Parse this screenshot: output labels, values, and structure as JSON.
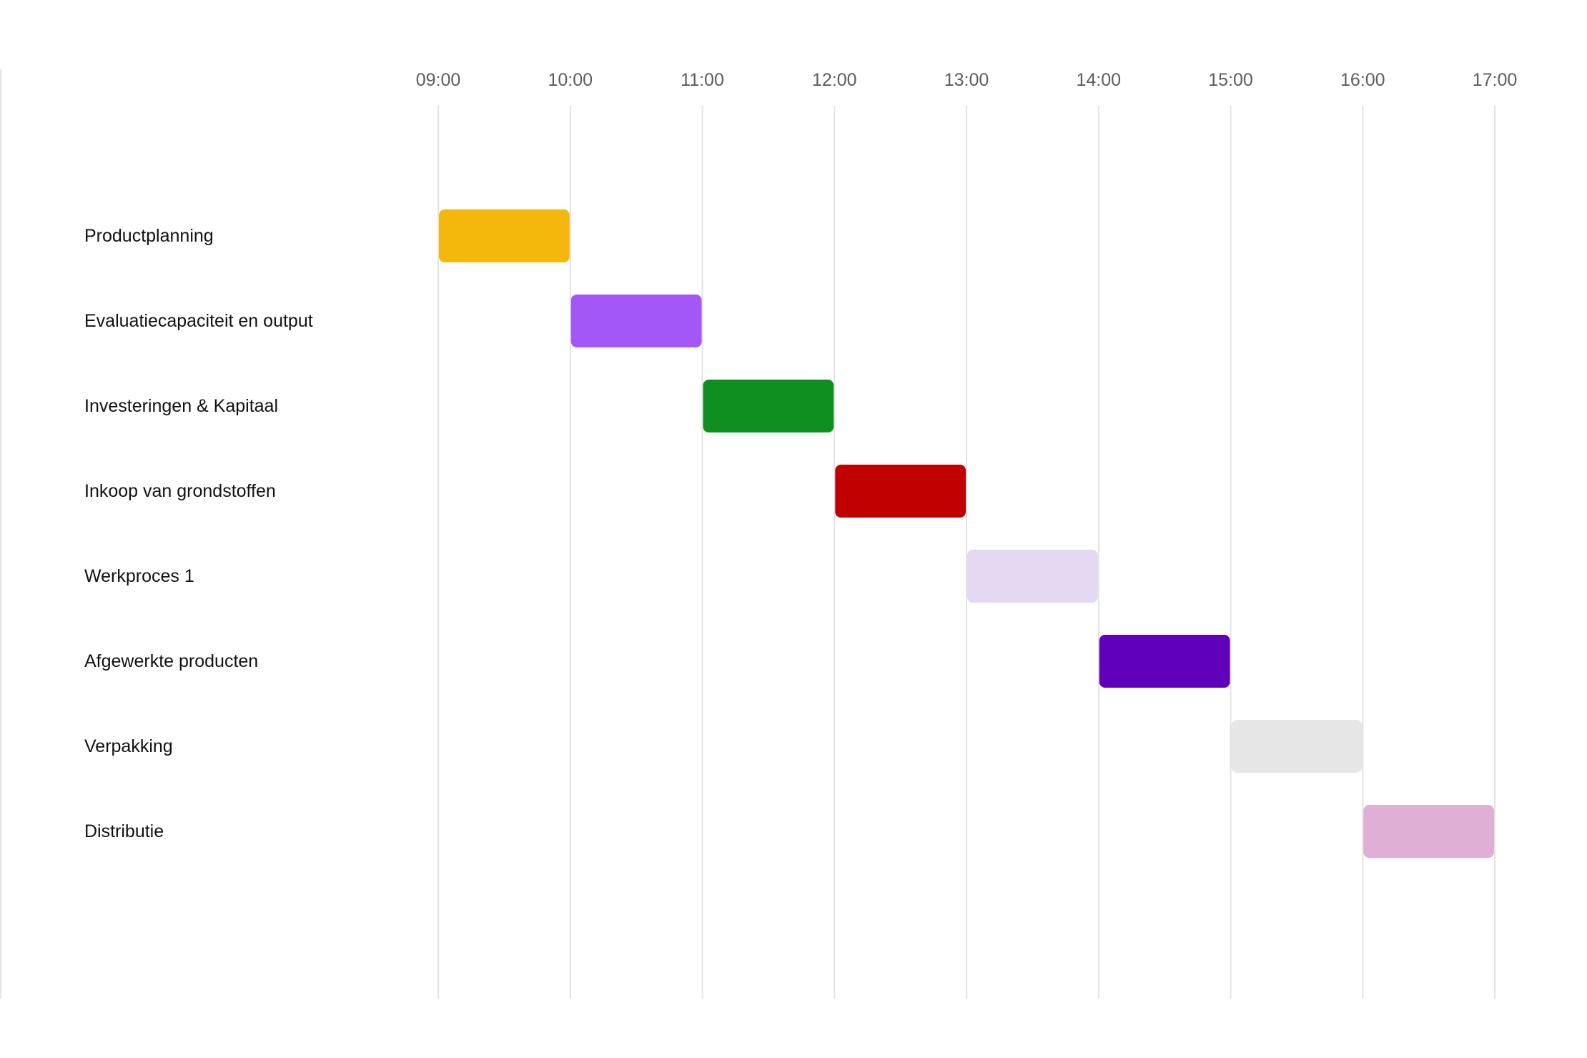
{
  "chart_data": {
    "type": "gantt",
    "x_ticks": [
      "09:00",
      "10:00",
      "11:00",
      "12:00",
      "13:00",
      "14:00",
      "15:00",
      "16:00",
      "17:00"
    ],
    "xlim": [
      "09:00",
      "17:00"
    ],
    "grid": true,
    "tasks": [
      {
        "name": "Productplanning",
        "start": "09:00",
        "end": "10:00",
        "color": "#f4b70b"
      },
      {
        "name": "Evaluatiecapaciteit en output",
        "start": "10:00",
        "end": "11:00",
        "color": "#a457f7"
      },
      {
        "name": "Investeringen & Kapitaal",
        "start": "11:00",
        "end": "12:00",
        "color": "#0f8f1f"
      },
      {
        "name": "Inkoop van grondstoffen",
        "start": "12:00",
        "end": "13:00",
        "color": "#c10000"
      },
      {
        "name": "Werkproces 1",
        "start": "13:00",
        "end": "14:00",
        "color": "#e5d8f2"
      },
      {
        "name": "Afgewerkte producten",
        "start": "14:00",
        "end": "15:00",
        "color": "#6000b8"
      },
      {
        "name": "Verpakking",
        "start": "15:00",
        "end": "16:00",
        "color": "#e6e6e6"
      },
      {
        "name": "Distributie",
        "start": "16:00",
        "end": "17:00",
        "color": "#dfafd5"
      }
    ]
  }
}
